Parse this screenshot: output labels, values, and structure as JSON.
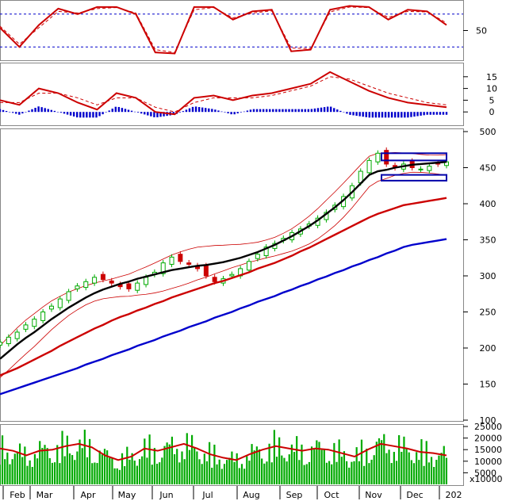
{
  "chart_data": [
    {
      "type": "line",
      "panel": "stochastic",
      "yticks": [
        50
      ],
      "guide_levels": [
        20,
        80
      ],
      "ylim": [
        0,
        100
      ],
      "series": [
        {
          "color": "#cc0000",
          "style": "solid",
          "x": [
            0,
            2,
            4,
            6,
            8,
            10,
            12,
            14,
            16,
            18,
            20,
            22,
            24,
            26,
            28,
            30,
            32,
            34,
            36,
            38,
            40,
            42,
            44,
            46
          ],
          "y": [
            55,
            20,
            60,
            90,
            80,
            93,
            93,
            80,
            10,
            8,
            93,
            93,
            70,
            85,
            88,
            12,
            15,
            88,
            95,
            93,
            70,
            88,
            85,
            60
          ]
        },
        {
          "color": "#cc0000",
          "style": "dashed",
          "x": [
            0,
            2,
            4,
            6,
            8,
            10,
            12,
            14,
            16,
            18,
            20,
            22,
            24,
            26,
            28,
            30,
            32,
            34,
            36,
            38,
            40,
            42,
            44,
            46
          ],
          "y": [
            58,
            25,
            55,
            85,
            82,
            90,
            92,
            82,
            15,
            10,
            88,
            92,
            73,
            82,
            86,
            18,
            17,
            84,
            93,
            92,
            74,
            85,
            84,
            64
          ]
        }
      ]
    },
    {
      "type": "line",
      "panel": "macd",
      "yticks": [
        15,
        10,
        5,
        0
      ],
      "ylim": [
        -5,
        20
      ],
      "series": [
        {
          "color": "#cc0000",
          "style": "solid",
          "x": [
            0,
            2,
            4,
            6,
            8,
            10,
            12,
            14,
            16,
            18,
            20,
            22,
            24,
            26,
            28,
            30,
            32,
            34,
            36,
            38,
            40,
            42,
            44,
            46
          ],
          "y": [
            5,
            3,
            10,
            8,
            4,
            1,
            8,
            6,
            0,
            -1,
            6,
            7,
            5,
            7,
            8,
            10,
            12,
            17,
            13,
            9,
            6,
            4,
            3,
            2
          ]
        },
        {
          "color": "#cc0000",
          "style": "dashed",
          "x": [
            0,
            2,
            4,
            6,
            8,
            10,
            12,
            14,
            16,
            18,
            20,
            22,
            24,
            26,
            28,
            30,
            32,
            34,
            36,
            38,
            40,
            42,
            44,
            46
          ],
          "y": [
            4,
            4,
            8,
            8,
            6,
            3,
            6,
            6,
            2,
            0,
            4,
            6,
            6,
            6,
            7,
            9,
            11,
            15,
            14,
            11,
            8,
            6,
            4,
            3
          ]
        }
      ],
      "histogram_color": "#0000cc"
    },
    {
      "type": "line",
      "panel": "price",
      "yticks": [
        500,
        450,
        400,
        350,
        300,
        250,
        200,
        150,
        100
      ],
      "ylim": [
        100,
        500
      ],
      "candles": {
        "up_color": "#00aa00",
        "down_color": "#cc0000",
        "close": [
          208,
          215,
          222,
          232,
          240,
          250,
          258,
          268,
          278,
          286,
          292,
          298,
          295,
          290,
          285,
          282,
          290,
          298,
          305,
          318,
          326,
          320,
          316,
          310,
          300,
          292,
          296,
          302,
          310,
          320,
          330,
          340,
          345,
          352,
          360,
          365,
          372,
          380,
          388,
          398,
          410,
          425,
          445,
          460,
          470,
          455,
          450,
          455,
          450,
          448,
          452,
          455,
          458
        ]
      },
      "series": [
        {
          "name": "",
          "color": "#000000",
          "x_start": 0,
          "y": [
            185,
            195,
            205,
            214,
            222,
            231,
            240,
            248,
            256,
            263,
            270,
            276,
            281,
            285,
            289,
            292,
            296,
            299,
            302,
            305,
            308,
            310,
            312,
            314,
            315,
            317,
            319,
            322,
            325,
            329,
            333,
            338,
            343,
            349,
            355,
            362,
            369,
            377,
            386,
            395,
            405,
            416,
            428,
            440,
            445,
            447,
            450,
            452,
            454,
            455,
            456,
            457,
            458
          ]
        },
        {
          "name": "",
          "color": "#cc0000",
          "x_start": 0,
          "y": [
            162,
            167,
            172,
            178,
            184,
            190,
            196,
            203,
            209,
            215,
            221,
            227,
            232,
            238,
            243,
            247,
            252,
            256,
            261,
            265,
            270,
            274,
            278,
            282,
            286,
            290,
            293,
            297,
            301,
            305,
            310,
            314,
            318,
            323,
            328,
            334,
            339,
            345,
            351,
            357,
            363,
            369,
            375,
            381,
            386,
            390,
            394,
            398,
            400,
            402,
            404,
            406,
            408
          ]
        },
        {
          "name": "",
          "color": "#0000cc",
          "x_start": 0,
          "y": [
            136,
            140,
            144,
            148,
            152,
            156,
            160,
            164,
            168,
            172,
            177,
            181,
            185,
            190,
            194,
            198,
            203,
            207,
            211,
            216,
            220,
            224,
            229,
            233,
            237,
            242,
            246,
            250,
            255,
            259,
            264,
            268,
            272,
            277,
            281,
            286,
            290,
            295,
            299,
            304,
            308,
            313,
            317,
            322,
            326,
            331,
            335,
            340,
            343,
            345,
            347,
            349,
            351
          ]
        }
      ],
      "band_color": "#cc0000",
      "annotation_box_color": "#0000aa"
    },
    {
      "type": "bar",
      "panel": "volume",
      "ylabel": "x10000",
      "yticks": [
        "25000",
        "20000",
        "15000",
        "10000",
        "5000"
      ],
      "ylim": [
        0,
        25000
      ],
      "bar_color": "#00aa00",
      "ma_color": "#cc0000",
      "volume_ma": [
        15500,
        14500,
        12500,
        14500,
        15000,
        16500,
        17500,
        16000,
        12500,
        10500,
        12000,
        15500,
        14500,
        16000,
        17500,
        15500,
        13000,
        11500,
        10500,
        13000,
        15000,
        16500,
        15500,
        14500,
        15500,
        15000,
        13500,
        12000,
        15000,
        17500,
        16500,
        15500,
        14000,
        13500,
        12500
      ],
      "xticks": [
        "Feb",
        "Mar",
        "Apr",
        "May",
        "Jun",
        "Jul",
        "Aug",
        "Sep",
        "Oct",
        "Nov",
        "Dec",
        "202"
      ]
    }
  ]
}
